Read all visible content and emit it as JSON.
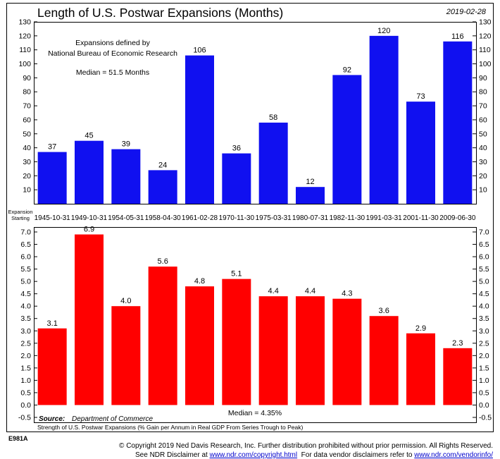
{
  "header": {
    "title": "Length of U.S. Postwar Expansions (Months)",
    "date": "2019-02-28"
  },
  "top_panel": {
    "note_line1": "Expansions defined by",
    "note_line2": "National Bureau of Economic Research",
    "median_note": "Median = 51.5 Months",
    "axis_caption_line1": "Expansion",
    "axis_caption_line2": "Starting"
  },
  "bottom_panel": {
    "source_label": "Source:",
    "source_text": "Department of Commerce",
    "median_note": "Median = 4.35%",
    "caption": "Strength of U.S. Postwar Expansions (% Gain per Annum in Real GDP From Series Trough to Peak)"
  },
  "chart_id": "E981A",
  "footer": {
    "line1": "© Copyright 2019 Ned Davis Research, Inc. Further distribution prohibited without prior permission. All Rights Reserved.",
    "line2_prefix": "See NDR Disclaimer at ",
    "line2_link1": "www.ndr.com/copyright.html",
    "line2_middle": "  For data vendor disclaimers refer to ",
    "line2_link2": "www.ndr.com/vendorinfo/"
  },
  "colors": {
    "top_bars": "#1010f0",
    "bottom_bars": "#ff0000",
    "frame": "#000000"
  },
  "chart_data": [
    {
      "type": "bar",
      "title": "Length of U.S. Postwar Expansions (Months)",
      "categories": [
        "1945-10-31",
        "1949-10-31",
        "1954-05-31",
        "1958-04-30",
        "1961-02-28",
        "1970-11-30",
        "1975-03-31",
        "1980-07-31",
        "1982-11-30",
        "1991-03-31",
        "2001-11-30",
        "2009-06-30"
      ],
      "values": [
        37,
        45,
        39,
        24,
        106,
        36,
        58,
        12,
        92,
        120,
        73,
        116
      ],
      "value_labels": [
        "37",
        "45",
        "39",
        "24",
        "106",
        "36",
        "58",
        "12",
        "92",
        "120",
        "73",
        "116"
      ],
      "ylim": [
        0,
        130
      ],
      "yticks": [
        10,
        20,
        30,
        40,
        50,
        60,
        70,
        80,
        90,
        100,
        110,
        120,
        130
      ],
      "ytick_labels": [
        "10",
        "20",
        "30",
        "40",
        "50",
        "60",
        "70",
        "80",
        "90",
        "100",
        "110",
        "120",
        "130"
      ],
      "median": 51.5,
      "xlabel": "Expansion Starting",
      "grid": false
    },
    {
      "type": "bar",
      "title": "Strength of U.S. Postwar Expansions (% Gain per Annum in Real GDP From Series Trough to Peak)",
      "categories": [
        "1945-10-31",
        "1949-10-31",
        "1954-05-31",
        "1958-04-30",
        "1961-02-28",
        "1970-11-30",
        "1975-03-31",
        "1980-07-31",
        "1982-11-30",
        "1991-03-31",
        "2001-11-30",
        "2009-06-30"
      ],
      "values": [
        3.1,
        6.9,
        4.0,
        5.6,
        4.8,
        5.1,
        4.4,
        4.4,
        4.3,
        3.6,
        2.9,
        2.3
      ],
      "value_labels": [
        "3.1",
        "6.9",
        "4.0",
        "5.6",
        "4.8",
        "5.1",
        "4.4",
        "4.4",
        "4.3",
        "3.6",
        "2.9",
        "2.3"
      ],
      "ylim": [
        -0.7,
        7.2
      ],
      "yticks": [
        -0.5,
        0.0,
        0.5,
        1.0,
        1.5,
        2.0,
        2.5,
        3.0,
        3.5,
        4.0,
        4.5,
        5.0,
        5.5,
        6.0,
        6.5,
        7.0
      ],
      "ytick_labels": [
        "-0.5",
        "0.0",
        "0.5",
        "1.0",
        "1.5",
        "2.0",
        "2.5",
        "3.0",
        "3.5",
        "4.0",
        "4.5",
        "5.0",
        "5.5",
        "6.0",
        "6.5",
        "7.0"
      ],
      "median": 4.35,
      "grid": false
    }
  ]
}
